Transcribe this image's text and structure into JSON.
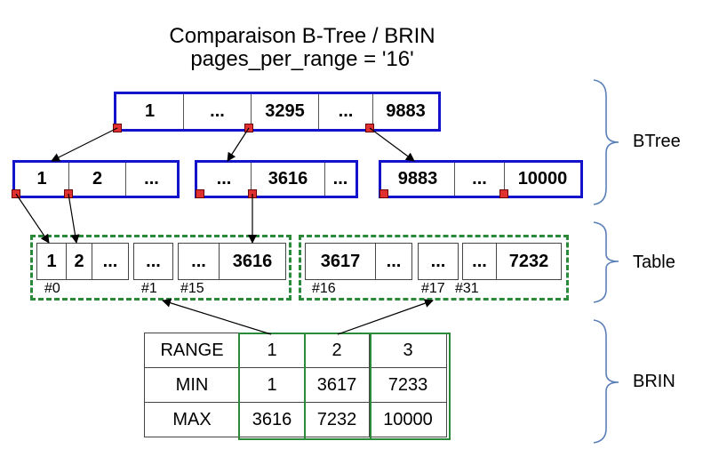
{
  "title": {
    "line1": "Comparaison B-Tree / BRIN",
    "line2": "pages_per_range = '16'"
  },
  "btree": {
    "root": [
      "1",
      "...",
      "3295",
      "...",
      "9883"
    ],
    "leaves": [
      [
        "1",
        "2",
        "..."
      ],
      [
        "...",
        "3616",
        "..."
      ],
      [
        "9883",
        "...",
        "10000"
      ]
    ]
  },
  "table": {
    "range1": {
      "blocks": [
        [
          "1",
          "2",
          "..."
        ],
        [
          "..."
        ],
        [
          "...",
          "3616"
        ]
      ],
      "labels": [
        "#0",
        "#1",
        "#15"
      ]
    },
    "range2": {
      "blocks": [
        [
          "3617",
          "..."
        ],
        [
          "..."
        ],
        [
          "...",
          "7232"
        ]
      ],
      "labels": [
        "#16",
        "#17",
        "#31"
      ]
    }
  },
  "brin": {
    "rows": [
      [
        "RANGE",
        "1",
        "2",
        "3"
      ],
      [
        "MIN",
        "1",
        "3617",
        "7233"
      ],
      [
        "MAX",
        "3616",
        "7232",
        "10000"
      ]
    ]
  },
  "side_labels": {
    "btree": "BTree",
    "table": "Table",
    "brin": "BRIN"
  },
  "colors": {
    "btree_border": "#1313cc",
    "pointer": "#e03030",
    "table_border": "#2a8a3a",
    "brace": "#5a7fb8"
  }
}
